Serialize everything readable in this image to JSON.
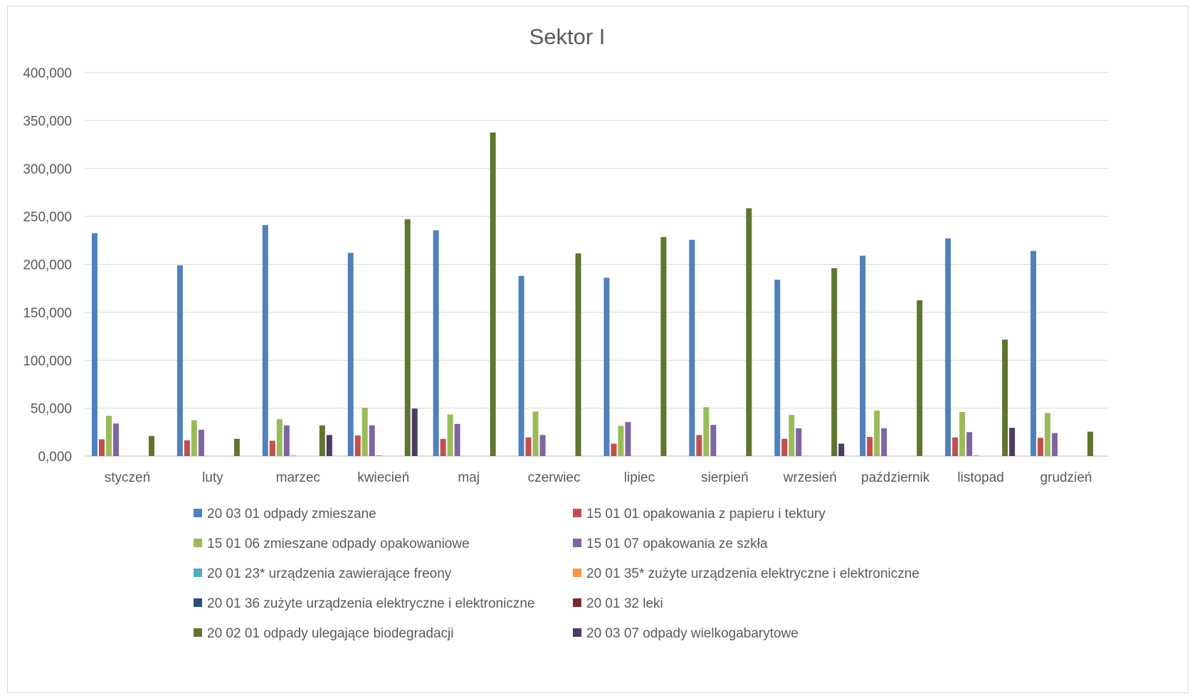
{
  "chart_data": {
    "type": "bar",
    "title": "Sektor I",
    "xlabel": "",
    "ylabel": "",
    "ylim": [
      0,
      400000
    ],
    "y_tick_labels": [
      "0,000",
      "50,000",
      "100,000",
      "150,000",
      "200,000",
      "250,000",
      "300,000",
      "350,000",
      "400,000"
    ],
    "grid": true,
    "legend_position": "bottom",
    "categories": [
      "styczeń",
      "luty",
      "marzec",
      "kwiecień",
      "maj",
      "czerwiec",
      "lipiec",
      "sierpień",
      "wrzesień",
      "październik",
      "listopad",
      "grudzień"
    ],
    "series": [
      {
        "name": "20 03 01 odpady zmieszane",
        "color": "#4F81BD",
        "values": [
          232500,
          199000,
          241000,
          212000,
          235500,
          188000,
          186000,
          225500,
          184000,
          209000,
          227000,
          214000
        ]
      },
      {
        "name": "15 01 01 opakowania z papieru i tektury",
        "color": "#C0504D",
        "values": [
          17500,
          16500,
          16000,
          21500,
          18000,
          19500,
          13000,
          22000,
          18000,
          20000,
          19500,
          19000
        ]
      },
      {
        "name": "15 01 06 zmieszane odpady opakowaniowe",
        "color": "#9BBB59",
        "values": [
          42000,
          37500,
          38500,
          50500,
          43500,
          46500,
          31500,
          51000,
          43000,
          47500,
          46000,
          45000
        ]
      },
      {
        "name": "15 01 07 opakowania ze szkła",
        "color": "#8064A2",
        "values": [
          34000,
          27500,
          32000,
          32000,
          33500,
          22000,
          35500,
          32500,
          29000,
          29000,
          25000,
          24000
        ]
      },
      {
        "name": "20 01 23* urządzenia zawierające freony",
        "color": "#4BACC6",
        "values": [
          0,
          0,
          600,
          800,
          0,
          0,
          0,
          0,
          300,
          0,
          700,
          0
        ]
      },
      {
        "name": "20 01 35* zużyte urządzenia elektryczne i elektroniczne",
        "color": "#F79646",
        "values": [
          0,
          0,
          0,
          0,
          0,
          0,
          0,
          0,
          0,
          0,
          0,
          0
        ]
      },
      {
        "name": "20 01 36 zużyte urządzenia elektryczne i elektroniczne",
        "color": "#2C4D75",
        "values": [
          0,
          0,
          0,
          0,
          0,
          0,
          0,
          0,
          0,
          0,
          0,
          0
        ]
      },
      {
        "name": "20 01 32 leki",
        "color": "#772C2A",
        "values": [
          0,
          0,
          0,
          0,
          0,
          0,
          0,
          0,
          0,
          0,
          0,
          0
        ]
      },
      {
        "name": "20 02 01 odpady ulegające biodegradacji",
        "color": "#5F7530",
        "values": [
          21000,
          18000,
          32000,
          247000,
          337500,
          211500,
          228500,
          258500,
          196000,
          162500,
          121500,
          25500
        ]
      },
      {
        "name": "20 03 07 odpady wielkogabarytowe",
        "color": "#4D3B62",
        "values": [
          0,
          0,
          22000,
          49500,
          0,
          0,
          0,
          0,
          13000,
          0,
          29500,
          0
        ]
      }
    ]
  }
}
